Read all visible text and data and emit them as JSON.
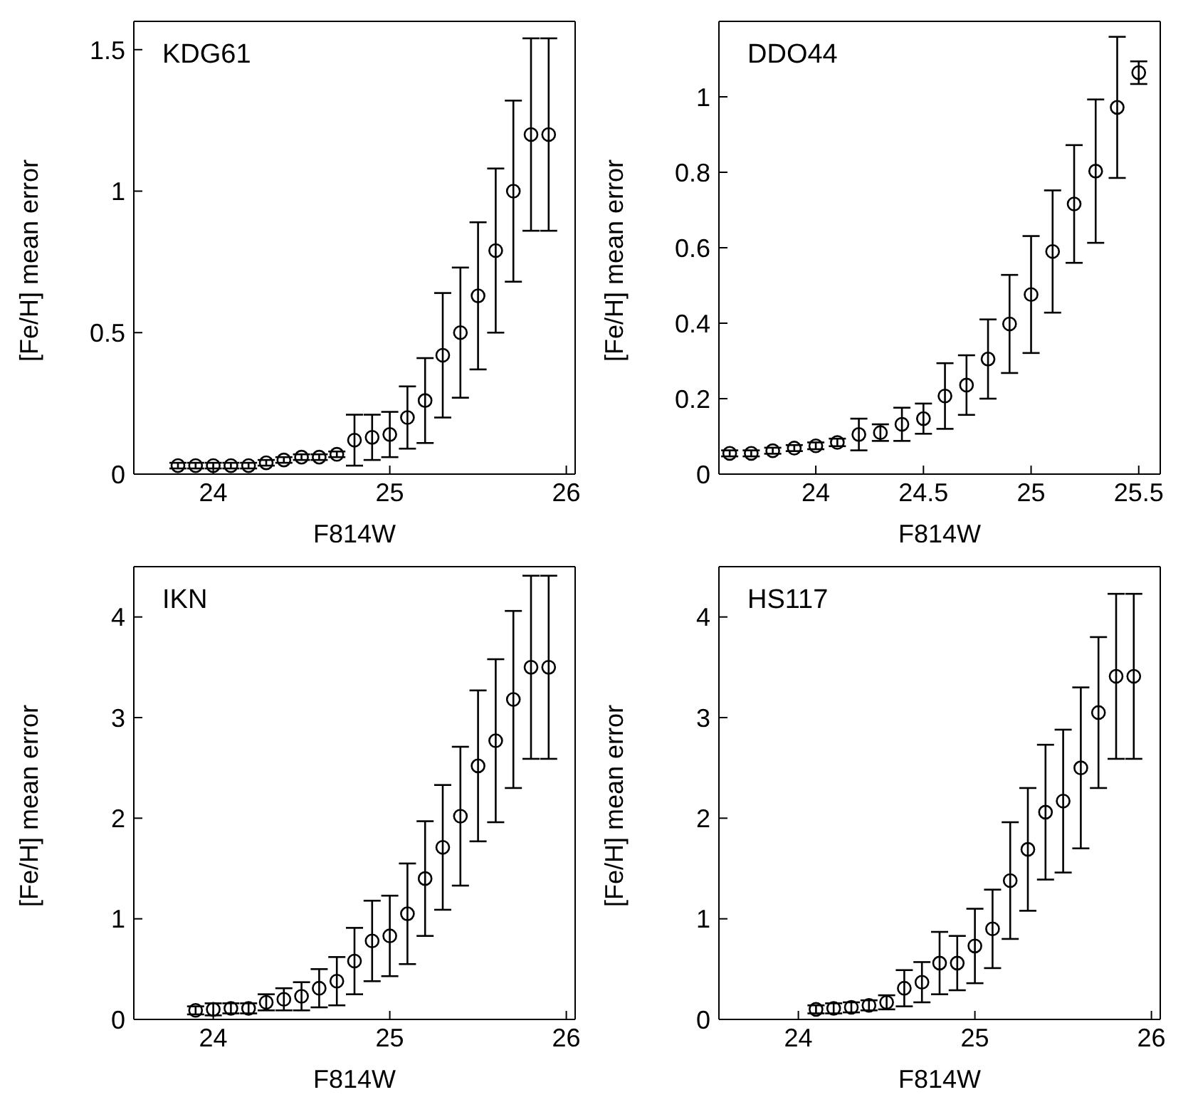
{
  "chart_data": [
    {
      "type": "scatter",
      "title": "KDG61",
      "xlabel": "F814W",
      "ylabel": "[Fe/H] mean error",
      "marker": "circle",
      "legend": false,
      "grid": false,
      "xlim": [
        23.55,
        26.05
      ],
      "xticks": [
        24,
        25,
        26
      ],
      "ylim": [
        0,
        1.6
      ],
      "yticks": [
        0,
        0.5,
        1,
        1.5
      ],
      "x": [
        23.8,
        23.9,
        24.0,
        24.1,
        24.2,
        24.3,
        24.4,
        24.5,
        24.6,
        24.7,
        24.8,
        24.9,
        25.0,
        25.1,
        25.2,
        25.3,
        25.4,
        25.5,
        25.6,
        25.7,
        25.8,
        25.9
      ],
      "series": [
        {
          "color": "#000000",
          "values": [
            0.03,
            0.03,
            0.03,
            0.03,
            0.03,
            0.04,
            0.05,
            0.06,
            0.06,
            0.07,
            0.12,
            0.13,
            0.14,
            0.2,
            0.26,
            0.42,
            0.5,
            0.63,
            0.79,
            1.0,
            1.2,
            1.2
          ],
          "errors": [
            0.01,
            0.01,
            0.01,
            0.01,
            0.01,
            0.01,
            0.01,
            0.01,
            0.01,
            0.01,
            0.09,
            0.08,
            0.08,
            0.11,
            0.15,
            0.22,
            0.23,
            0.26,
            0.29,
            0.32,
            0.34,
            0.34
          ]
        }
      ]
    },
    {
      "type": "scatter",
      "title": "DDO44",
      "xlabel": "F814W",
      "ylabel": "[Fe/H] mean error",
      "marker": "circle",
      "legend": false,
      "grid": false,
      "xlim": [
        23.55,
        25.6
      ],
      "xticks": [
        24,
        24.5,
        25,
        25.5
      ],
      "ylim": [
        0,
        1.2
      ],
      "yticks": [
        0,
        0.2,
        0.4,
        0.6,
        0.8,
        1
      ],
      "x": [
        23.6,
        23.7,
        23.8,
        23.9,
        24.0,
        24.1,
        24.2,
        24.3,
        24.4,
        24.5,
        24.6,
        24.7,
        24.8,
        24.9,
        25.0,
        25.1,
        25.2,
        25.3,
        25.4,
        25.5
      ],
      "series": [
        {
          "color": "#000000",
          "values": [
            0.055,
            0.055,
            0.062,
            0.069,
            0.075,
            0.084,
            0.105,
            0.11,
            0.132,
            0.147,
            0.207,
            0.236,
            0.305,
            0.398,
            0.476,
            0.59,
            0.716,
            0.803,
            0.972,
            1.064
          ],
          "errors": [
            0.008,
            0.008,
            0.008,
            0.008,
            0.009,
            0.01,
            0.042,
            0.022,
            0.044,
            0.04,
            0.087,
            0.079,
            0.105,
            0.13,
            0.155,
            0.162,
            0.156,
            0.19,
            0.187,
            0.03
          ]
        }
      ]
    },
    {
      "type": "scatter",
      "title": "IKN",
      "xlabel": "F814W",
      "ylabel": "[Fe/H] mean error",
      "marker": "circle",
      "legend": false,
      "grid": false,
      "xlim": [
        23.55,
        26.05
      ],
      "xticks": [
        24,
        25,
        26
      ],
      "ylim": [
        0,
        4.5
      ],
      "yticks": [
        0,
        1,
        2,
        3,
        4
      ],
      "x": [
        23.9,
        24.0,
        24.1,
        24.2,
        24.3,
        24.4,
        24.5,
        24.6,
        24.7,
        24.8,
        24.9,
        25.0,
        25.1,
        25.2,
        25.3,
        25.4,
        25.5,
        25.6,
        25.7,
        25.8,
        25.9
      ],
      "series": [
        {
          "color": "#000000",
          "values": [
            0.09,
            0.1,
            0.11,
            0.11,
            0.17,
            0.2,
            0.23,
            0.31,
            0.38,
            0.58,
            0.78,
            0.83,
            1.05,
            1.4,
            1.71,
            2.02,
            2.52,
            2.77,
            3.18,
            3.5,
            3.5
          ],
          "errors": [
            0.04,
            0.06,
            0.05,
            0.05,
            0.08,
            0.11,
            0.14,
            0.19,
            0.24,
            0.33,
            0.4,
            0.4,
            0.5,
            0.57,
            0.62,
            0.69,
            0.75,
            0.81,
            0.88,
            0.91,
            0.91
          ]
        }
      ]
    },
    {
      "type": "scatter",
      "title": "HS117",
      "xlabel": "F814W",
      "ylabel": "[Fe/H] mean error",
      "marker": "circle",
      "legend": false,
      "grid": false,
      "xlim": [
        23.55,
        26.05
      ],
      "xticks": [
        24,
        25,
        26
      ],
      "ylim": [
        0,
        4.5
      ],
      "yticks": [
        0,
        1,
        2,
        3,
        4
      ],
      "x": [
        24.1,
        24.2,
        24.3,
        24.4,
        24.5,
        24.6,
        24.7,
        24.8,
        24.9,
        25.0,
        25.1,
        25.2,
        25.3,
        25.4,
        25.5,
        25.6,
        25.7,
        25.8,
        25.9
      ],
      "series": [
        {
          "color": "#000000",
          "values": [
            0.1,
            0.11,
            0.12,
            0.14,
            0.17,
            0.31,
            0.37,
            0.56,
            0.56,
            0.73,
            0.9,
            1.38,
            1.69,
            2.06,
            2.17,
            2.5,
            3.05,
            3.41,
            3.41
          ],
          "errors": [
            0.04,
            0.05,
            0.05,
            0.05,
            0.07,
            0.18,
            0.2,
            0.31,
            0.27,
            0.37,
            0.39,
            0.58,
            0.61,
            0.67,
            0.71,
            0.8,
            0.75,
            0.82,
            0.82
          ]
        }
      ]
    }
  ]
}
